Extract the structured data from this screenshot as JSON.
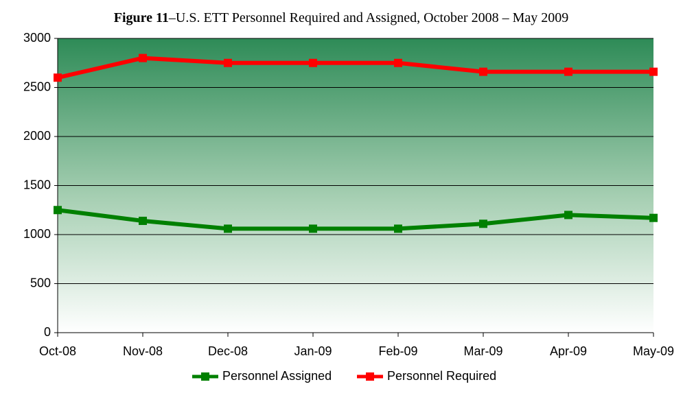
{
  "chart_data": {
    "type": "line",
    "figure_label": "Figure 11",
    "title": "–U.S. ETT Personnel Required and Assigned, October 2008 – May 2009",
    "categories": [
      "Oct-08",
      "Nov-08",
      "Dec-08",
      "Jan-09",
      "Feb-09",
      "Mar-09",
      "Apr-09",
      "May-09"
    ],
    "series": [
      {
        "name": "Personnel Assigned",
        "color": "#008000",
        "values": [
          1250,
          1140,
          1060,
          1060,
          1060,
          1110,
          1200,
          1170
        ]
      },
      {
        "name": "Personnel Required",
        "color": "#ff0000",
        "values": [
          2600,
          2800,
          2750,
          2750,
          2750,
          2660,
          2660,
          2660
        ]
      }
    ],
    "ylim": [
      0,
      3000
    ],
    "yticks": [
      0,
      500,
      1000,
      1500,
      2000,
      2500,
      3000
    ],
    "grid": true,
    "legend": "bottom"
  }
}
